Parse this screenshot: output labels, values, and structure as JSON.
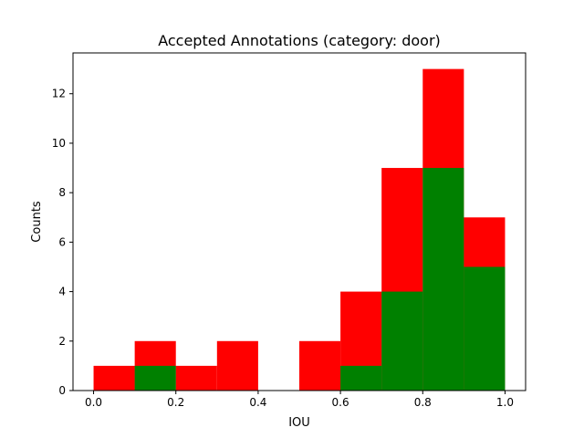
{
  "chart_data": {
    "type": "bar",
    "title": "Accepted Annotations (category: door)",
    "xlabel": "IOU",
    "ylabel": "Counts",
    "xlim": [
      -0.05,
      1.05
    ],
    "ylim": [
      0,
      13.65
    ],
    "xticks": [
      "0.0",
      "0.2",
      "0.4",
      "0.6",
      "0.8",
      "1.0"
    ],
    "xtick_values": [
      0.0,
      0.2,
      0.4,
      0.6,
      0.8,
      1.0
    ],
    "yticks": [
      "0",
      "2",
      "4",
      "6",
      "8",
      "10",
      "12"
    ],
    "ytick_values": [
      0,
      2,
      4,
      6,
      8,
      10,
      12
    ],
    "bin_edges": [
      0.0,
      0.1,
      0.2,
      0.3,
      0.4,
      0.5,
      0.6,
      0.7,
      0.8,
      0.9,
      1.0
    ],
    "series": [
      {
        "color": "#ff0000",
        "values": [
          1,
          2,
          1,
          2,
          0,
          2,
          4,
          9,
          13,
          7
        ]
      },
      {
        "color": "#008000",
        "values": [
          0,
          1,
          0,
          0,
          0,
          0,
          1,
          4,
          9,
          5
        ]
      }
    ],
    "grid": false,
    "legend": "none"
  }
}
